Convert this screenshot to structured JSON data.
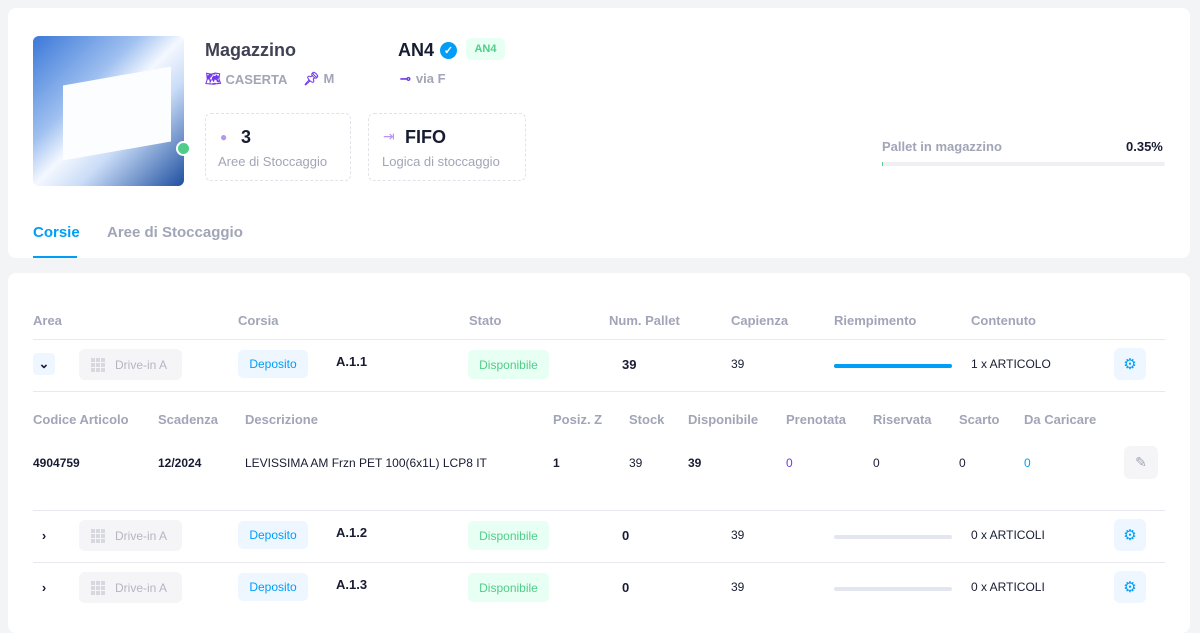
{
  "warehouse": {
    "label": "Magazzino",
    "city": "CASERTA",
    "pin": "M",
    "code": "AN4",
    "code_badge": "AN4",
    "address": "via F",
    "online": true
  },
  "stats": [
    {
      "value": "3",
      "label": "Aree di Stoccaggio"
    },
    {
      "value": "FIFO",
      "label": "Logica di stoccaggio"
    }
  ],
  "pallet": {
    "label": "Pallet in magazzino",
    "value": "0.35%",
    "percent": 0.35
  },
  "tabs": [
    {
      "label": "Corsie",
      "active": true
    },
    {
      "label": "Aree di Stoccaggio",
      "active": false
    }
  ],
  "table": {
    "headers": [
      "Area",
      "Corsia",
      "Stato",
      "Num. Pallet",
      "Capienza",
      "Riempimento",
      "Contenuto"
    ],
    "rows": [
      {
        "area": "Drive-in A",
        "type": "Deposito",
        "corsia": "A.1.1",
        "stato": "Disponibile",
        "pallet": "39",
        "capienza": "39",
        "fill": 100,
        "contenuto": "1 x ARTICOLO",
        "expanded": true
      },
      {
        "area": "Drive-in A",
        "type": "Deposito",
        "corsia": "A.1.2",
        "stato": "Disponibile",
        "pallet": "0",
        "capienza": "39",
        "fill": 0,
        "contenuto": "0 x ARTICOLI",
        "expanded": false
      },
      {
        "area": "Drive-in A",
        "type": "Deposito",
        "corsia": "A.1.3",
        "stato": "Disponibile",
        "pallet": "0",
        "capienza": "39",
        "fill": 0,
        "contenuto": "0 x ARTICOLI",
        "expanded": false
      }
    ],
    "sub_headers": [
      "Codice Articolo",
      "Scadenza",
      "Descrizione",
      "Posiz. Z",
      "Stock",
      "Disponibile",
      "Prenotata",
      "Riservata",
      "Scarto",
      "Da Caricare"
    ],
    "sub_row": [
      "4904759",
      "12/2024",
      "LEVISSIMA AM Frzn PET 100(6x1L) LCP8 IT",
      "1",
      "39",
      "39",
      "0",
      "0",
      "0",
      "0"
    ]
  },
  "colors": {
    "primary": "#009ef7",
    "success": "#50cd89",
    "purple": "#7239ea"
  }
}
